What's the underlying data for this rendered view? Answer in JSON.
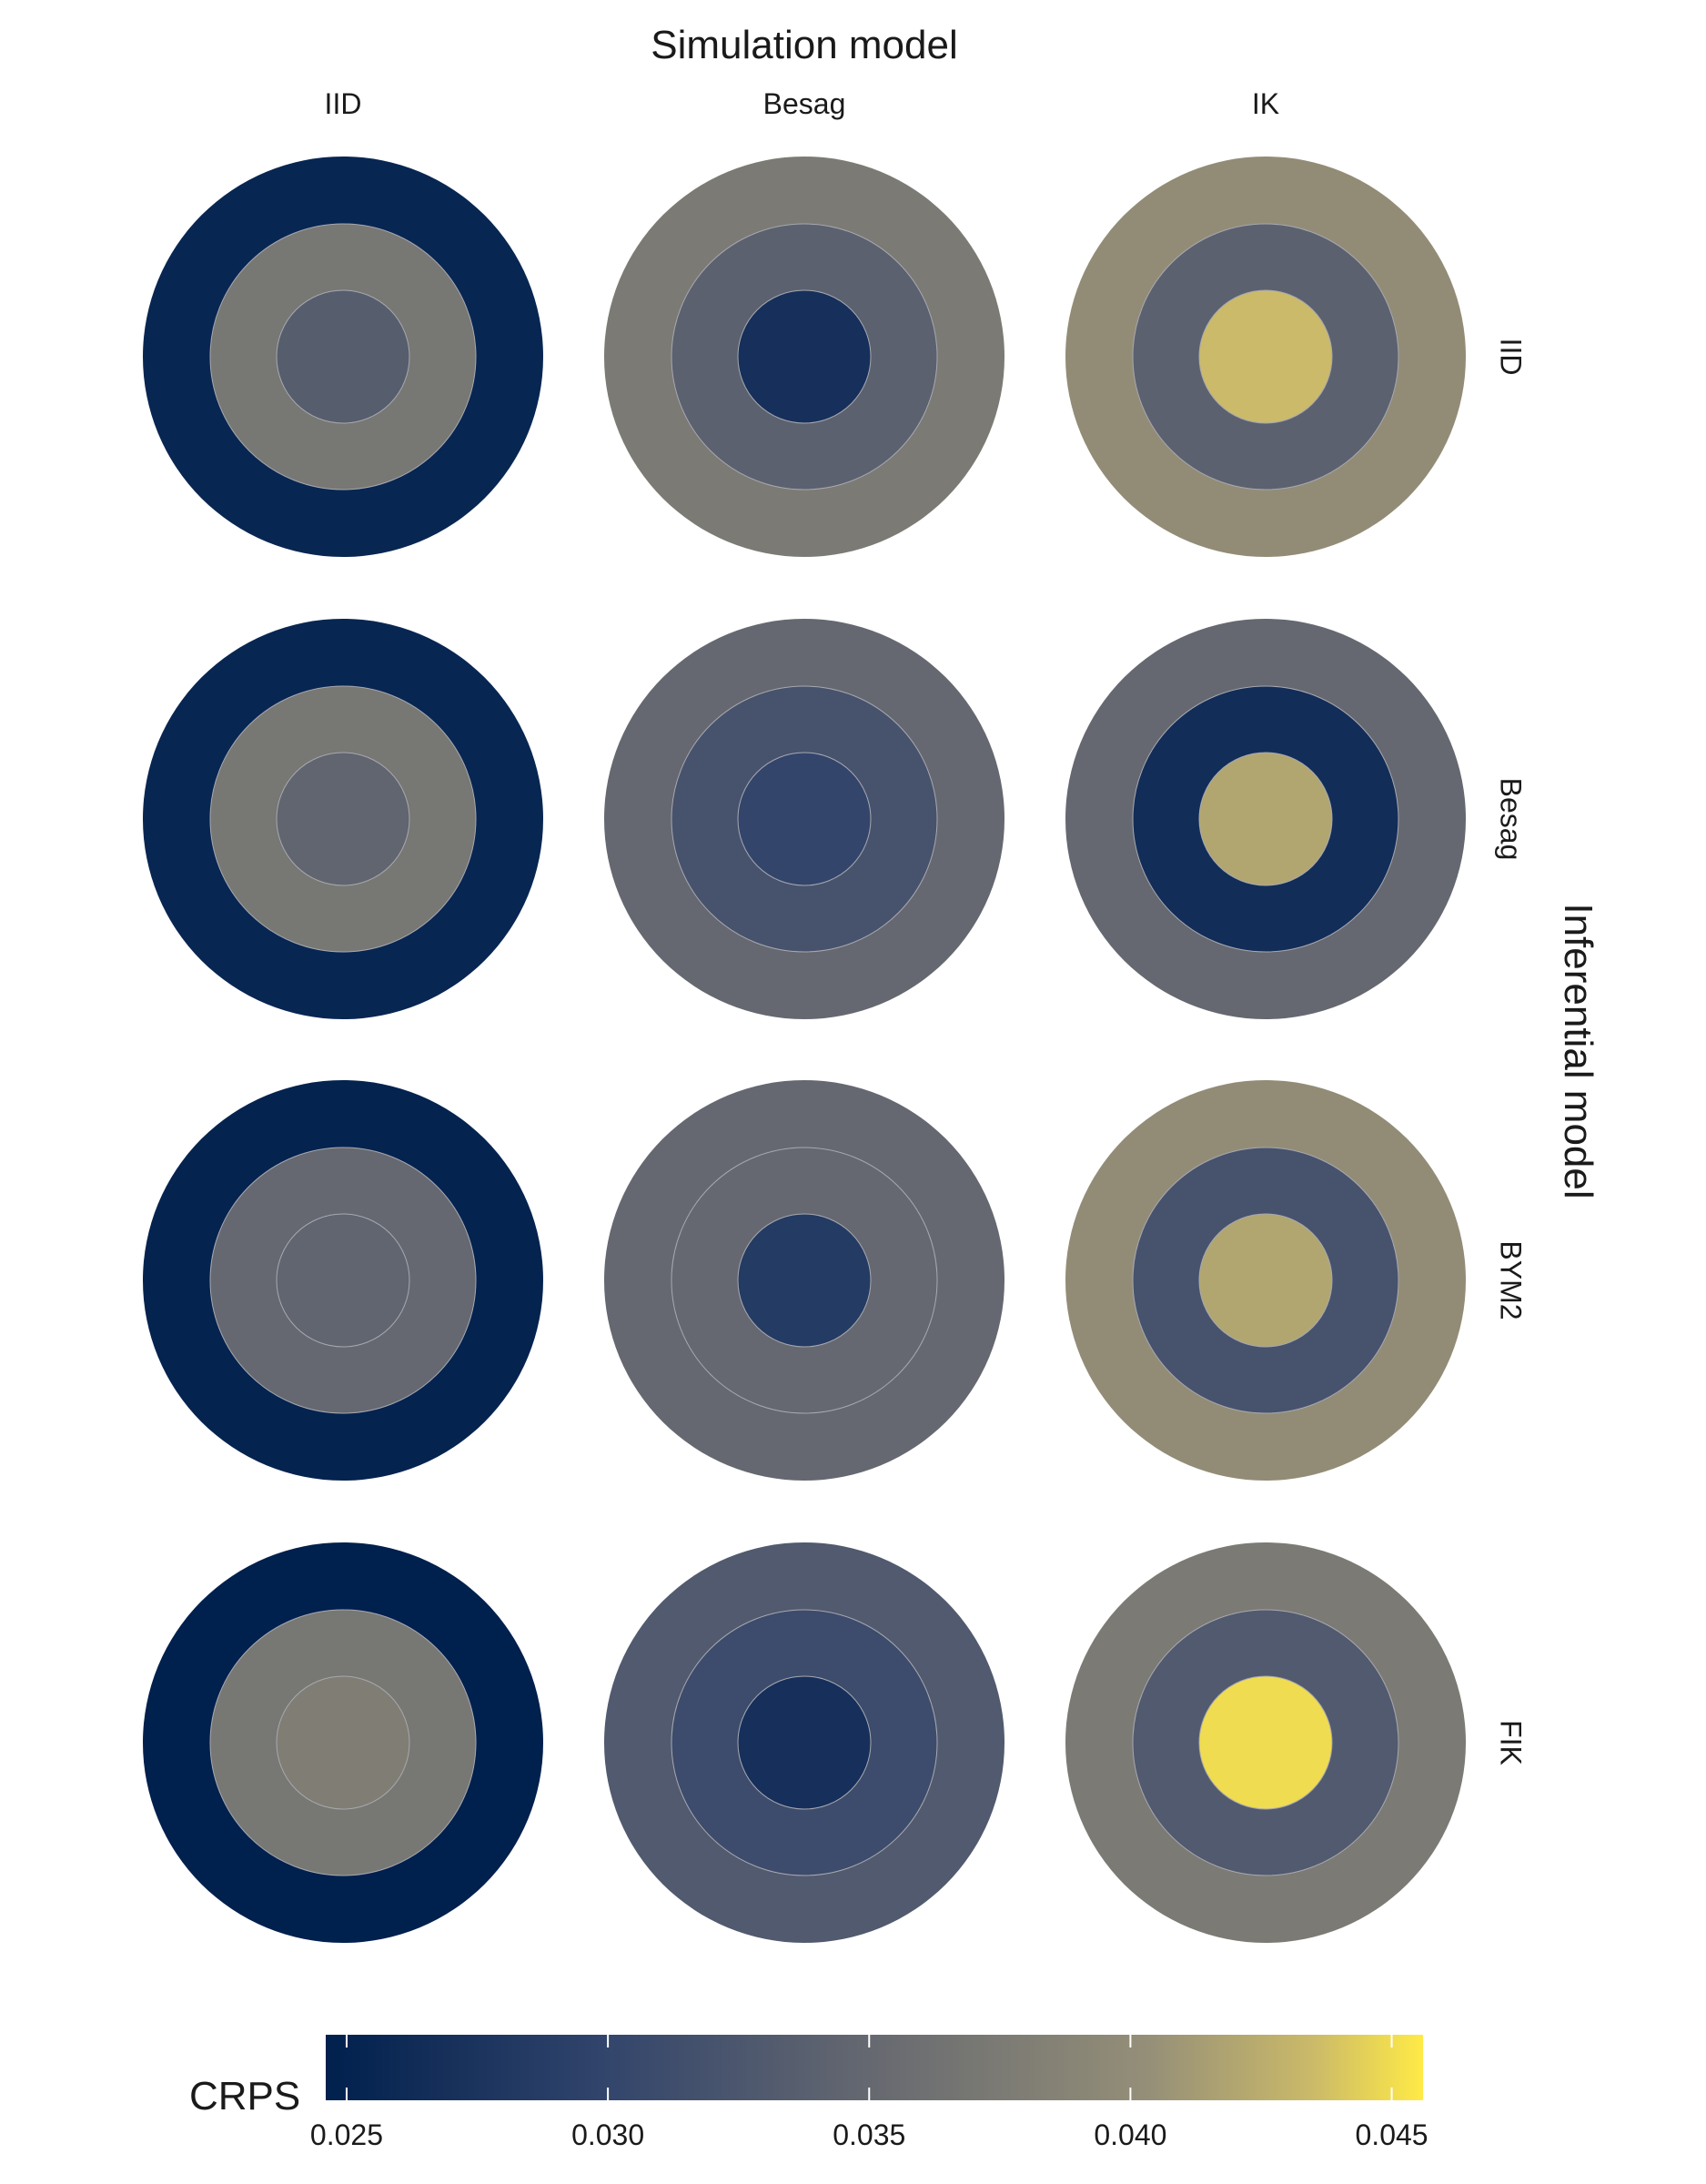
{
  "chart_data": {
    "type": "heatmap",
    "title": "Simulation model",
    "row_axis_label": "Inferential model",
    "columns": [
      "IID",
      "Besag",
      "IK"
    ],
    "rows": [
      "IID",
      "Besag",
      "BYM2",
      "FIK"
    ],
    "ring_order": "outer, middle, inner",
    "cells": [
      [
        [
          0.0255,
          0.037,
          0.0335
        ],
        [
          0.0375,
          0.034,
          0.027
        ],
        [
          0.04,
          0.034,
          0.0435
        ]
      ],
      [
        [
          0.0255,
          0.037,
          0.0345
        ],
        [
          0.035,
          0.032,
          0.03
        ],
        [
          0.035,
          0.0265,
          0.042
        ]
      ],
      [
        [
          0.025,
          0.035,
          0.0345
        ],
        [
          0.035,
          0.035,
          0.0285
        ],
        [
          0.04,
          0.032,
          0.042
        ]
      ],
      [
        [
          0.0245,
          0.037,
          0.038
        ],
        [
          0.033,
          0.031,
          0.027
        ],
        [
          0.0375,
          0.033,
          0.045
        ]
      ]
    ],
    "legend": {
      "title": "CRPS",
      "position": "bottom",
      "range": [
        0.0246,
        0.0456
      ],
      "ticks": [
        0.025,
        0.03,
        0.035,
        0.04,
        0.045
      ],
      "tick_labels": [
        "0.025",
        "0.030",
        "0.035",
        "0.040",
        "0.045"
      ]
    },
    "colors": {
      "scale": [
        [
          0.0,
          "#00204D"
        ],
        [
          0.25,
          "#31446B"
        ],
        [
          0.5,
          "#666970"
        ],
        [
          0.75,
          "#958F78"
        ],
        [
          0.9,
          "#CBBA69"
        ],
        [
          1.0,
          "#FFEA46"
        ]
      ],
      "ring_border": "#a8a8b0"
    }
  }
}
